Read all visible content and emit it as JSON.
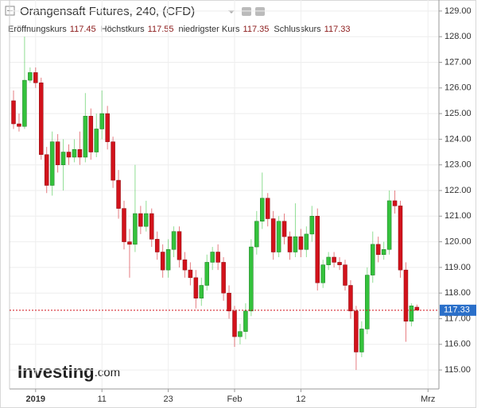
{
  "chart_data": {
    "type": "candlestick",
    "title": "Orangensaft Futures, 240, (CFD)",
    "ohlc_labels": [
      "Eröffnungskurs",
      "Höchstkurs",
      "niedrigster Kurs",
      "Schlusskurs"
    ],
    "logo": [
      "Investing",
      ".com"
    ],
    "up_color": "#34c23c",
    "down_color": "#d2121b",
    "price_line_color": "#d2121b",
    "price_label_color": "#2a6fc9",
    "grid": true,
    "categories": [
      null,
      null,
      null,
      null,
      "2019",
      null,
      null,
      null,
      null,
      null,
      null,
      null,
      null,
      null,
      null,
      null,
      "11",
      null,
      null,
      null,
      null,
      null,
      null,
      null,
      null,
      null,
      null,
      null,
      "23",
      null,
      null,
      null,
      null,
      null,
      null,
      null,
      null,
      null,
      null,
      null,
      "Feb",
      null,
      null,
      null,
      null,
      null,
      null,
      null,
      null,
      null,
      null,
      null,
      "12",
      null,
      null,
      null,
      null,
      null,
      null,
      null,
      null,
      null,
      null,
      null,
      null,
      null,
      null,
      null,
      null,
      null,
      null,
      null,
      null,
      null,
      null,
      "Mrz"
    ],
    "open": [
      125.5,
      124.6,
      124.5,
      126.3,
      126.6,
      126.2,
      123.4,
      122.2,
      123.9,
      123.0,
      123.5,
      123.3,
      123.6,
      123.3,
      124.9,
      123.5,
      124.4,
      125.0,
      123.9,
      122.4,
      121.3,
      120.0,
      119.9,
      121.1,
      120.6,
      121.1,
      120.1,
      119.6,
      118.9,
      119.7,
      120.4,
      119.3,
      118.9,
      118.6,
      117.8,
      118.3,
      119.2,
      119.6,
      119.2,
      118.0,
      117.3,
      116.3,
      116.5,
      117.3,
      119.8,
      120.8,
      121.7,
      120.9,
      119.6,
      120.8,
      120.2,
      119.6,
      120.2,
      119.7,
      120.3,
      121.0,
      118.4,
      119.1,
      119.4,
      119.2,
      119.1,
      118.3,
      117.3,
      115.7,
      116.6,
      118.7,
      119.9,
      119.5,
      119.7,
      121.6,
      121.4,
      118.9,
      116.9,
      117.45,
      null,
      null
    ],
    "high": [
      125.9,
      125.0,
      128.0,
      126.8,
      126.8,
      126.4,
      123.7,
      124.3,
      124.2,
      124.0,
      123.8,
      124.0,
      124.3,
      125.8,
      125.2,
      125.0,
      125.9,
      125.3,
      124.1,
      122.8,
      121.6,
      120.5,
      123.0,
      121.4,
      121.6,
      121.3,
      120.4,
      119.9,
      120.1,
      120.6,
      120.6,
      119.6,
      119.2,
      118.9,
      118.6,
      119.5,
      119.8,
      119.9,
      119.4,
      118.3,
      117.5,
      116.8,
      117.6,
      120.1,
      121.2,
      122.7,
      121.9,
      121.2,
      121.0,
      121.1,
      120.4,
      121.5,
      120.5,
      120.6,
      121.4,
      121.3,
      119.3,
      119.6,
      119.6,
      119.4,
      119.3,
      118.5,
      117.5,
      116.9,
      119.0,
      120.4,
      120.2,
      120.0,
      122.0,
      122.0,
      121.6,
      119.2,
      117.6,
      117.55,
      null,
      null
    ],
    "low": [
      124.4,
      124.3,
      124.4,
      126.2,
      126.0,
      123.2,
      121.9,
      121.8,
      122.7,
      122.0,
      123.0,
      123.1,
      123.0,
      123.1,
      123.2,
      123.3,
      124.0,
      123.6,
      122.1,
      120.9,
      119.7,
      118.6,
      119.6,
      120.3,
      120.4,
      119.8,
      119.3,
      118.6,
      118.6,
      119.4,
      119.0,
      118.6,
      118.3,
      117.4,
      117.5,
      118.1,
      118.9,
      118.9,
      117.7,
      117.0,
      115.9,
      116.0,
      116.2,
      117.1,
      119.5,
      120.5,
      120.6,
      119.3,
      119.4,
      119.9,
      119.3,
      119.4,
      119.4,
      119.4,
      120.0,
      118.1,
      118.2,
      118.9,
      119.0,
      118.9,
      118.1,
      117.0,
      115.0,
      115.5,
      116.4,
      118.4,
      119.2,
      119.3,
      119.5,
      121.1,
      118.6,
      116.1,
      116.7,
      117.35,
      null,
      null
    ],
    "close": [
      124.6,
      124.5,
      126.3,
      126.6,
      126.2,
      123.4,
      122.2,
      123.9,
      123.0,
      123.5,
      123.3,
      123.6,
      123.3,
      124.9,
      123.5,
      124.4,
      125.0,
      123.9,
      122.4,
      121.3,
      120.0,
      119.9,
      121.1,
      120.6,
      121.1,
      120.1,
      119.6,
      118.9,
      119.7,
      120.4,
      119.3,
      118.9,
      118.6,
      117.8,
      118.3,
      119.2,
      119.6,
      119.2,
      118.0,
      117.3,
      116.3,
      116.5,
      117.3,
      119.8,
      120.8,
      121.7,
      120.9,
      119.6,
      120.8,
      120.2,
      119.6,
      120.2,
      119.7,
      120.3,
      121.0,
      118.4,
      119.1,
      119.4,
      119.2,
      119.1,
      118.3,
      117.3,
      115.7,
      116.6,
      118.7,
      119.9,
      119.5,
      119.7,
      121.6,
      121.4,
      118.9,
      116.9,
      117.5,
      117.33,
      null,
      null
    ],
    "ylim": [
      114.26,
      129.43
    ],
    "yticks": [
      {
        "value": 115,
        "label": "115.00"
      },
      {
        "value": 116,
        "label": "116.00"
      },
      {
        "value": 117,
        "label": "117.00"
      },
      {
        "value": 118,
        "label": "118.00"
      },
      {
        "value": 119,
        "label": "119.00"
      },
      {
        "value": 120,
        "label": "120.00"
      },
      {
        "value": 121,
        "label": "121.00"
      },
      {
        "value": 122,
        "label": "122.00"
      },
      {
        "value": 123,
        "label": "123.00"
      },
      {
        "value": 124,
        "label": "124.00"
      },
      {
        "value": 125,
        "label": "125.00"
      },
      {
        "value": 126,
        "label": "126.00"
      },
      {
        "value": 127,
        "label": "127.00"
      },
      {
        "value": 128,
        "label": "128.00"
      },
      {
        "value": 129,
        "label": "129.00"
      }
    ]
  }
}
